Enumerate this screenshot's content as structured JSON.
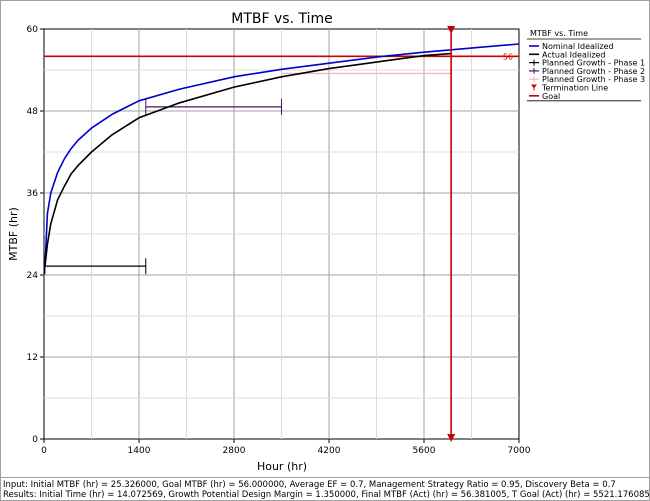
{
  "chart_data": {
    "type": "line",
    "title": "MTBF vs. Time",
    "xlabel": "Hour (hr)",
    "ylabel": "MTBF (hr)",
    "xlim": [
      0,
      7000
    ],
    "ylim": [
      0,
      60
    ],
    "xticks": [
      0,
      1400,
      2800,
      4200,
      5600,
      7000
    ],
    "yticks": [
      0,
      12,
      24,
      36,
      48,
      60
    ],
    "xtick_labels": [
      "0",
      "1400",
      "2800",
      "4200",
      "5600",
      "7000"
    ],
    "ytick_labels": [
      "0",
      "12",
      "24",
      "36",
      "48",
      "60"
    ],
    "grid": true,
    "legend": {
      "title": "MTBF vs. Time",
      "placement": "right",
      "entries": [
        {
          "label": "Nominal Idealized",
          "color": "#0000cc",
          "marker": "line"
        },
        {
          "label": "Actual Idealized",
          "color": "#000000",
          "marker": "line"
        },
        {
          "label": "Planned Growth - Phase 1",
          "color": "#000000",
          "marker": "plus"
        },
        {
          "label": "Planned Growth - Phase 2",
          "color": "#4b1060",
          "marker": "plus"
        },
        {
          "label": "Planned Growth - Phase 3",
          "color": "#f0b8c8",
          "marker": "plus"
        },
        {
          "label": "Termination Line",
          "color": "#cc0000",
          "marker": "triangle"
        },
        {
          "label": "Goal",
          "color": "#cc0000",
          "marker": "line"
        }
      ]
    },
    "series": [
      {
        "name": "Nominal Idealized",
        "color": "#0000cc",
        "x": [
          14,
          50,
          100,
          200,
          300,
          400,
          500,
          700,
          1000,
          1400,
          2000,
          2800,
          3500,
          4200,
          5000,
          5600,
          6400,
          7000
        ],
        "y": [
          25.3,
          33.0,
          36.0,
          39.0,
          41.0,
          42.5,
          43.7,
          45.5,
          47.5,
          49.5,
          51.2,
          53.0,
          54.1,
          55.0,
          56.0,
          56.6,
          57.3,
          57.8
        ]
      },
      {
        "name": "Actual Idealized",
        "color": "#000000",
        "x": [
          14,
          50,
          100,
          200,
          300,
          400,
          500,
          700,
          1000,
          1400,
          2000,
          2800,
          3500,
          4200,
          5000,
          5521,
          5600,
          6000
        ],
        "y": [
          25.3,
          28.5,
          31.5,
          35.0,
          37.0,
          38.8,
          40.0,
          42.0,
          44.5,
          47.0,
          49.2,
          51.5,
          53.0,
          54.2,
          55.3,
          56.0,
          56.1,
          56.4
        ]
      }
    ],
    "planned_phases": [
      {
        "name": "Planned Growth - Phase 1",
        "color": "#000000",
        "x_start": 14,
        "x_end": 1500,
        "y": 25.3
      },
      {
        "name": "Planned Growth - Phase 2",
        "color": "#4b1060",
        "x_start": 1500,
        "x_end": 3500,
        "y": 48.6
      },
      {
        "name": "Planned Growth - Phase 3",
        "color": "#f0b8c8",
        "x_start": 3500,
        "x_end": 6000,
        "y": 53.5
      }
    ],
    "termination_line": {
      "x": 6000,
      "color": "#cc0000"
    },
    "goal": {
      "y": 56,
      "label": "56",
      "color": "#cc0000"
    }
  },
  "footer": {
    "input_line": "Input: Initial MTBF (hr) = 25.326000, Goal MTBF (hr) = 56.000000, Average EF = 0.7, Management Strategy Ratio = 0.95, Discovery Beta = 0.7",
    "results_line": "Results: Initial Time (hr) = 14.072569, Growth Potential Design Margin = 1.350000, Final MTBF (Act) (hr) = 56.381005, T Goal (Act) (hr) = 5521.176085"
  }
}
